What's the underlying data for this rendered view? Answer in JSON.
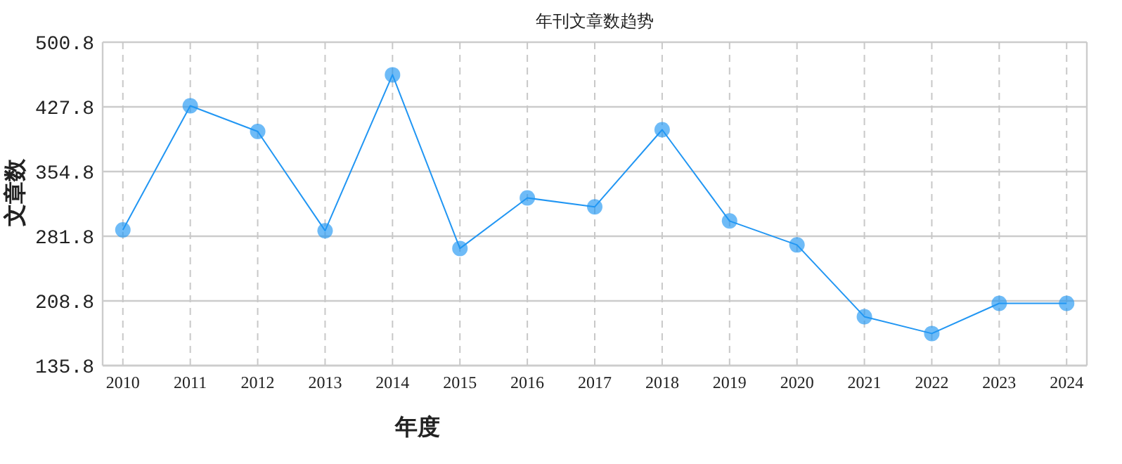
{
  "chart_data": {
    "type": "line",
    "title": "年刊文章数趋势",
    "xlabel": "年度",
    "ylabel": "文章数",
    "categories": [
      "2010",
      "2011",
      "2012",
      "2013",
      "2014",
      "2015",
      "2016",
      "2017",
      "2018",
      "2019",
      "2020",
      "2021",
      "2022",
      "2023",
      "2024"
    ],
    "series": [
      {
        "color": "#2196f3",
        "values": [
          289,
          429,
          400,
          288,
          464,
          268,
          325,
          315,
          402,
          299,
          272,
          191,
          172,
          206,
          206
        ]
      }
    ],
    "ylim": [
      135.8,
      500.8
    ],
    "yticks": [
      135.8,
      208.8,
      281.8,
      354.8,
      427.8,
      500.8
    ],
    "grid": true,
    "marker": "circle",
    "line_style": "solid"
  }
}
